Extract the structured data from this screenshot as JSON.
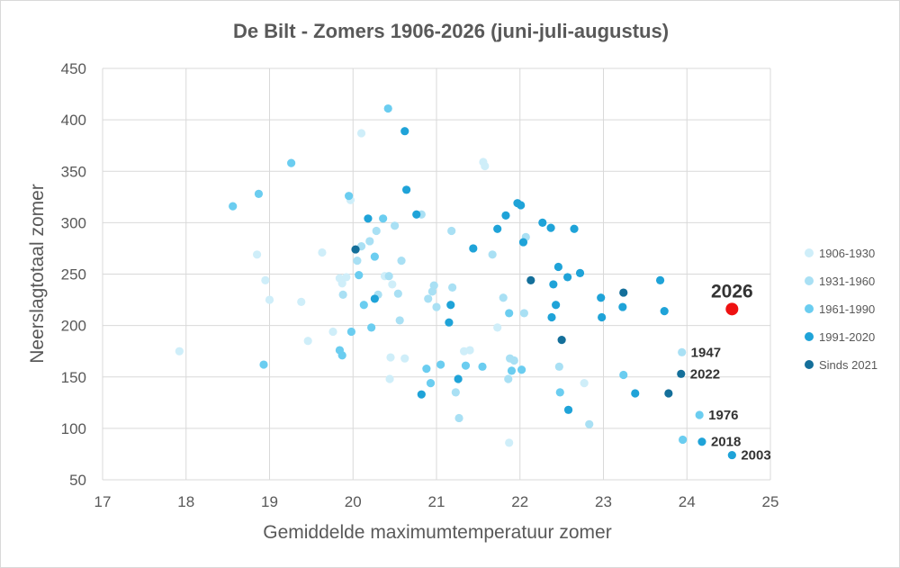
{
  "chart_data": {
    "type": "scatter",
    "title": "De Bilt - Zomers 1906-2026 (juni-juli-augustus)",
    "xlabel": "Gemiddelde maximumtemperatuur zomer",
    "ylabel": "Neerslagtotaal zomer",
    "xlim": [
      17,
      25
    ],
    "ylim": [
      50,
      450
    ],
    "x_ticks": [
      "17",
      "18",
      "19",
      "20",
      "21",
      "22",
      "23",
      "24",
      "25"
    ],
    "y_ticks": [
      "50",
      "100",
      "150",
      "200",
      "250",
      "300",
      "350",
      "400",
      "450"
    ],
    "grid": true,
    "legend_position": "right",
    "series": [
      {
        "name": "1906-1930",
        "color": "#cfeef9",
        "points": [
          [
            17.92,
            175
          ],
          [
            18.85,
            269
          ],
          [
            18.95,
            244
          ],
          [
            19.0,
            225
          ],
          [
            19.38,
            223
          ],
          [
            19.46,
            185
          ],
          [
            19.63,
            271
          ],
          [
            19.76,
            194
          ],
          [
            19.84,
            246
          ],
          [
            19.87,
            241
          ],
          [
            19.92,
            247
          ],
          [
            19.97,
            322
          ],
          [
            20.1,
            387
          ],
          [
            20.38,
            248
          ],
          [
            20.44,
            148
          ],
          [
            20.45,
            169
          ],
          [
            20.47,
            240
          ],
          [
            20.62,
            168
          ],
          [
            21.33,
            175
          ],
          [
            21.4,
            176
          ],
          [
            21.56,
            359
          ],
          [
            21.58,
            355
          ],
          [
            21.73,
            198
          ],
          [
            21.87,
            86
          ],
          [
            22.77,
            144
          ]
        ]
      },
      {
        "name": "1931-1960",
        "color": "#a9e0f4",
        "points": [
          [
            19.88,
            230
          ],
          [
            20.05,
            263
          ],
          [
            20.1,
            277
          ],
          [
            20.2,
            282
          ],
          [
            20.28,
            292
          ],
          [
            20.3,
            230
          ],
          [
            20.43,
            248
          ],
          [
            20.5,
            297
          ],
          [
            20.54,
            231
          ],
          [
            20.56,
            205
          ],
          [
            20.58,
            263
          ],
          [
            20.82,
            308
          ],
          [
            20.9,
            226
          ],
          [
            20.95,
            233
          ],
          [
            20.97,
            239
          ],
          [
            21.0,
            218
          ],
          [
            21.18,
            292
          ],
          [
            21.19,
            237
          ],
          [
            21.23,
            135
          ],
          [
            21.27,
            110
          ],
          [
            21.67,
            269
          ],
          [
            21.8,
            227
          ],
          [
            21.86,
            148
          ],
          [
            21.88,
            168
          ],
          [
            21.93,
            166
          ],
          [
            22.05,
            212
          ],
          [
            22.07,
            286
          ],
          [
            22.47,
            160
          ],
          [
            22.83,
            104
          ],
          [
            23.94,
            174
          ]
        ]
      },
      {
        "name": "1961-1990",
        "color": "#6bcdf0",
        "points": [
          [
            18.56,
            316
          ],
          [
            18.87,
            328
          ],
          [
            18.93,
            162
          ],
          [
            19.26,
            358
          ],
          [
            19.84,
            176
          ],
          [
            19.87,
            171
          ],
          [
            19.95,
            326
          ],
          [
            19.98,
            194
          ],
          [
            20.07,
            249
          ],
          [
            20.13,
            220
          ],
          [
            20.22,
            198
          ],
          [
            20.26,
            267
          ],
          [
            20.36,
            304
          ],
          [
            20.42,
            411
          ],
          [
            20.88,
            158
          ],
          [
            20.93,
            144
          ],
          [
            21.05,
            162
          ],
          [
            21.35,
            161
          ],
          [
            21.55,
            160
          ],
          [
            21.87,
            212
          ],
          [
            21.9,
            156
          ],
          [
            22.02,
            157
          ],
          [
            22.48,
            135
          ],
          [
            23.24,
            152
          ],
          [
            23.95,
            89
          ],
          [
            24.15,
            113
          ]
        ]
      },
      {
        "name": "1991-2020",
        "color": "#1fa3d8",
        "points": [
          [
            20.18,
            304
          ],
          [
            20.26,
            226
          ],
          [
            20.62,
            389
          ],
          [
            20.64,
            332
          ],
          [
            20.76,
            308
          ],
          [
            20.82,
            133
          ],
          [
            21.15,
            203
          ],
          [
            21.17,
            220
          ],
          [
            21.26,
            148
          ],
          [
            21.44,
            275
          ],
          [
            21.73,
            294
          ],
          [
            21.83,
            307
          ],
          [
            21.97,
            319
          ],
          [
            22.01,
            317
          ],
          [
            22.04,
            281
          ],
          [
            22.27,
            300
          ],
          [
            22.37,
            295
          ],
          [
            22.38,
            208
          ],
          [
            22.4,
            240
          ],
          [
            22.43,
            220
          ],
          [
            22.46,
            257
          ],
          [
            22.57,
            247
          ],
          [
            22.58,
            118
          ],
          [
            22.65,
            294
          ],
          [
            22.72,
            251
          ],
          [
            22.97,
            227
          ],
          [
            22.98,
            208
          ],
          [
            23.23,
            218
          ],
          [
            23.38,
            134
          ],
          [
            23.68,
            244
          ],
          [
            23.73,
            214
          ],
          [
            24.18,
            87
          ],
          [
            24.54,
            74
          ]
        ]
      },
      {
        "name": "Sinds 2021",
        "color": "#146f9a",
        "points": [
          [
            20.03,
            274
          ],
          [
            22.13,
            244
          ],
          [
            22.5,
            186
          ],
          [
            23.24,
            232
          ],
          [
            23.78,
            134
          ],
          [
            23.93,
            153
          ]
        ]
      },
      {
        "name": "2026",
        "color": "#ee1111",
        "points": [
          [
            24.54,
            216
          ]
        ]
      }
    ],
    "annotations": [
      {
        "text": "2026",
        "x": 24.54,
        "y": 216,
        "style": "big"
      },
      {
        "text": "1947",
        "x": 23.94,
        "y": 174,
        "style": "normal"
      },
      {
        "text": "2022",
        "x": 23.93,
        "y": 153,
        "style": "normal"
      },
      {
        "text": "1976",
        "x": 24.15,
        "y": 113,
        "style": "normal"
      },
      {
        "text": "2018",
        "x": 24.18,
        "y": 87,
        "style": "normal"
      },
      {
        "text": "2003",
        "x": 24.54,
        "y": 74,
        "style": "normal"
      }
    ]
  }
}
